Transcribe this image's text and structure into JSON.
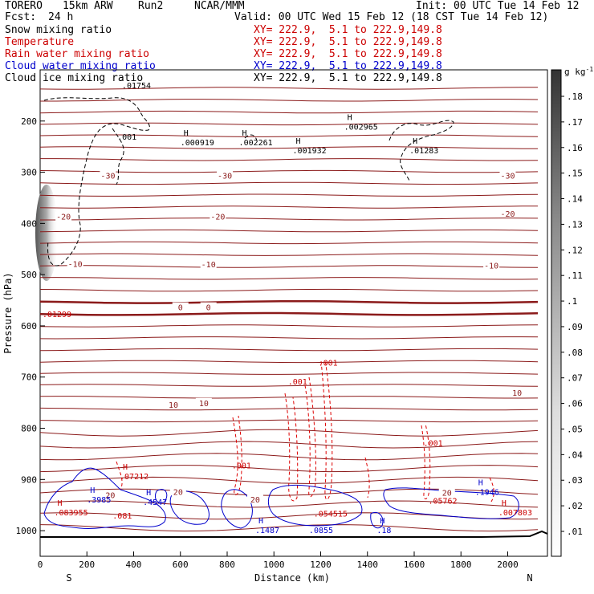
{
  "header": {
    "model": "TORERO",
    "grid": "15km ARW",
    "run": "Run2",
    "center": "NCAR/MMM",
    "init": "Init: 00 UTC Tue 14 Feb 12",
    "fcst_label": "Fcst:",
    "fcst_value": "24 h",
    "valid": "Valid: 00 UTC Wed 15 Feb 12 (18 CST Tue 14 Feb 12)"
  },
  "fields": [
    {
      "name": "Snow mixing ratio",
      "range": "XY= 222.9,  5.1 to 222.9,149.8",
      "color": "#000000"
    },
    {
      "name": "Temperature",
      "range": "XY= 222.9,  5.1 to 222.9,149.8",
      "color": "#cc0000"
    },
    {
      "name": "Rain water mixing ratio",
      "range": "XY= 222.9,  5.1 to 222.9,149.8",
      "color": "#cc0000"
    },
    {
      "name": "Cloud water mixing ratio",
      "range": "XY= 222.9,  5.1 to 222.9,149.8",
      "color": "#0000cc"
    },
    {
      "name": "Cloud ice mixing ratio",
      "range": "XY= 222.9,  5.1 to 222.9,149.8",
      "color": "#000000"
    }
  ],
  "chart_data": {
    "type": "cross-section contour",
    "xlabel": "Distance (km)",
    "ylabel": "Pressure (hPa)",
    "xlim": [
      0,
      2170
    ],
    "ylim": [
      1050,
      100
    ],
    "x_ticks": [
      0,
      200,
      400,
      600,
      800,
      1000,
      1200,
      1400,
      1600,
      1800,
      2000
    ],
    "y_ticks": [
      200,
      300,
      400,
      500,
      600,
      700,
      800,
      900,
      1000
    ],
    "endpoints": {
      "left": "S",
      "right": "N"
    },
    "colorbar": {
      "unit": "g kg",
      "unit_exp": "-1",
      "ticks": [
        ".01",
        ".02",
        ".03",
        ".04",
        ".05",
        ".06",
        ".07",
        ".08",
        ".09",
        ".1",
        ".11",
        ".12",
        ".13",
        ".14",
        ".15",
        ".16",
        ".17",
        ".18"
      ]
    },
    "temperature_labels": [
      {
        "text": "-30",
        "x": 290,
        "p": 308
      },
      {
        "text": "-30",
        "x": 790,
        "p": 308
      },
      {
        "text": "-30",
        "x": 2000,
        "p": 308
      },
      {
        "text": "-20",
        "x": 100,
        "p": 388
      },
      {
        "text": "-20",
        "x": 760,
        "p": 388
      },
      {
        "text": "-20",
        "x": 2000,
        "p": 382
      },
      {
        "text": "-10",
        "x": 150,
        "p": 480
      },
      {
        "text": "-10",
        "x": 720,
        "p": 481
      },
      {
        "text": "-10",
        "x": 1930,
        "p": 483
      },
      {
        "text": "0",
        "x": 600,
        "p": 565
      },
      {
        "text": "0",
        "x": 720,
        "p": 565
      },
      {
        "text": "10",
        "x": 570,
        "p": 755
      },
      {
        "text": "10",
        "x": 700,
        "p": 752
      },
      {
        "text": "10",
        "x": 2040,
        "p": 732
      },
      {
        "text": "20",
        "x": 300,
        "p": 932
      },
      {
        "text": "20",
        "x": 590,
        "p": 925
      },
      {
        "text": "20",
        "x": 920,
        "p": 940
      },
      {
        "text": "20",
        "x": 1740,
        "p": 927
      }
    ],
    "extrema": [
      {
        "text": ".000919",
        "x": 600,
        "p": 243,
        "color": "#000000",
        "h": true
      },
      {
        "text": ".002261",
        "x": 850,
        "p": 243,
        "color": "#000000",
        "h": true
      },
      {
        "text": ".001932",
        "x": 1080,
        "p": 258,
        "color": "#000000",
        "h": true
      },
      {
        "text": ".002965",
        "x": 1300,
        "p": 212,
        "color": "#000000",
        "h": true
      },
      {
        "text": ".01283",
        "x": 1580,
        "p": 258,
        "color": "#000000",
        "h": true
      },
      {
        "text": ".001",
        "x": 330,
        "p": 232,
        "color": "#000000",
        "h": false
      },
      {
        "text": ".001",
        "x": 1190,
        "p": 673,
        "color": "#cc0000",
        "h": false
      },
      {
        "text": ".001",
        "x": 1060,
        "p": 710,
        "color": "#cc0000",
        "h": false
      },
      {
        "text": ".001",
        "x": 1640,
        "p": 830,
        "color": "#cc0000",
        "h": false
      },
      {
        "text": ".001",
        "x": 820,
        "p": 874,
        "color": "#cc0000",
        "h": false
      },
      {
        "text": ".07212",
        "x": 340,
        "p": 895,
        "color": "#cc0000",
        "h": true
      },
      {
        "text": ".3985",
        "x": 200,
        "p": 940,
        "color": "#0000cc",
        "h": true
      },
      {
        "text": ".4547",
        "x": 440,
        "p": 945,
        "color": "#0000cc",
        "h": true
      },
      {
        "text": ".1946",
        "x": 1860,
        "p": 925,
        "color": "#0000cc",
        "h": true
      },
      {
        "text": ".05762",
        "x": 1660,
        "p": 943,
        "color": "#cc0000",
        "h": false
      },
      {
        "text": ".007803",
        "x": 1960,
        "p": 965,
        "color": "#cc0000",
        "h": true
      },
      {
        "text": ".054515",
        "x": 1170,
        "p": 968,
        "color": "#cc0000",
        "h": false
      },
      {
        "text": ".1487",
        "x": 920,
        "p": 1000,
        "color": "#0000cc",
        "h": true
      },
      {
        "text": ".0855",
        "x": 1150,
        "p": 1000,
        "color": "#0000cc",
        "h": false
      },
      {
        "text": ".18",
        "x": 1440,
        "p": 1000,
        "color": "#0000cc",
        "h": true
      },
      {
        "text": ".083955",
        "x": 60,
        "p": 965,
        "color": "#cc0000",
        "h": true
      },
      {
        "text": ".081",
        "x": 310,
        "p": 972,
        "color": "#cc0000",
        "h": false
      },
      {
        "text": ".01299",
        "x": 10,
        "p": 578,
        "color": "#cc0000",
        "h": false
      },
      {
        "text": ".01754",
        "x": 350,
        "p": 131,
        "color": "#000000",
        "h": false
      }
    ]
  }
}
